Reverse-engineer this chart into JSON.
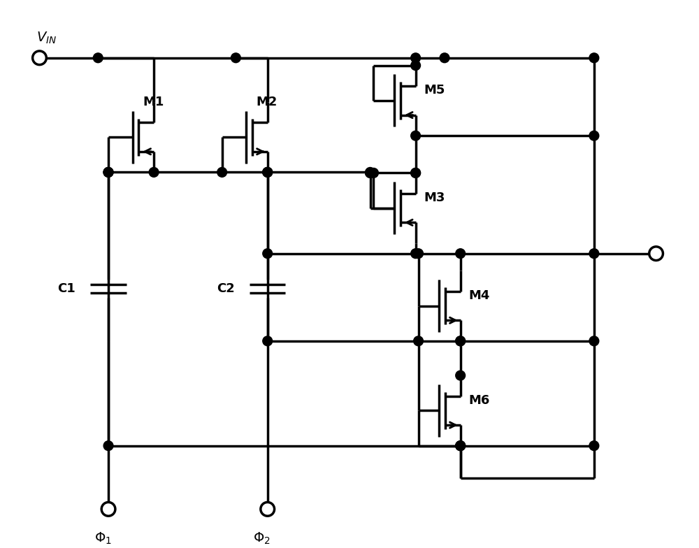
{
  "bg_color": "#ffffff",
  "line_color": "#000000",
  "line_width": 2.5,
  "figsize": [
    10.0,
    7.84
  ],
  "dpi": 100,
  "labels": {
    "VIN": "$V_{IN}$",
    "PHI1": "$\\Phi_1$",
    "PHI2": "$\\Phi_2$",
    "M1": "M1",
    "M2": "M2",
    "M3": "M3",
    "M4": "M4",
    "M5": "M5",
    "M6": "M6",
    "C1": "C1",
    "C2": "C2"
  }
}
